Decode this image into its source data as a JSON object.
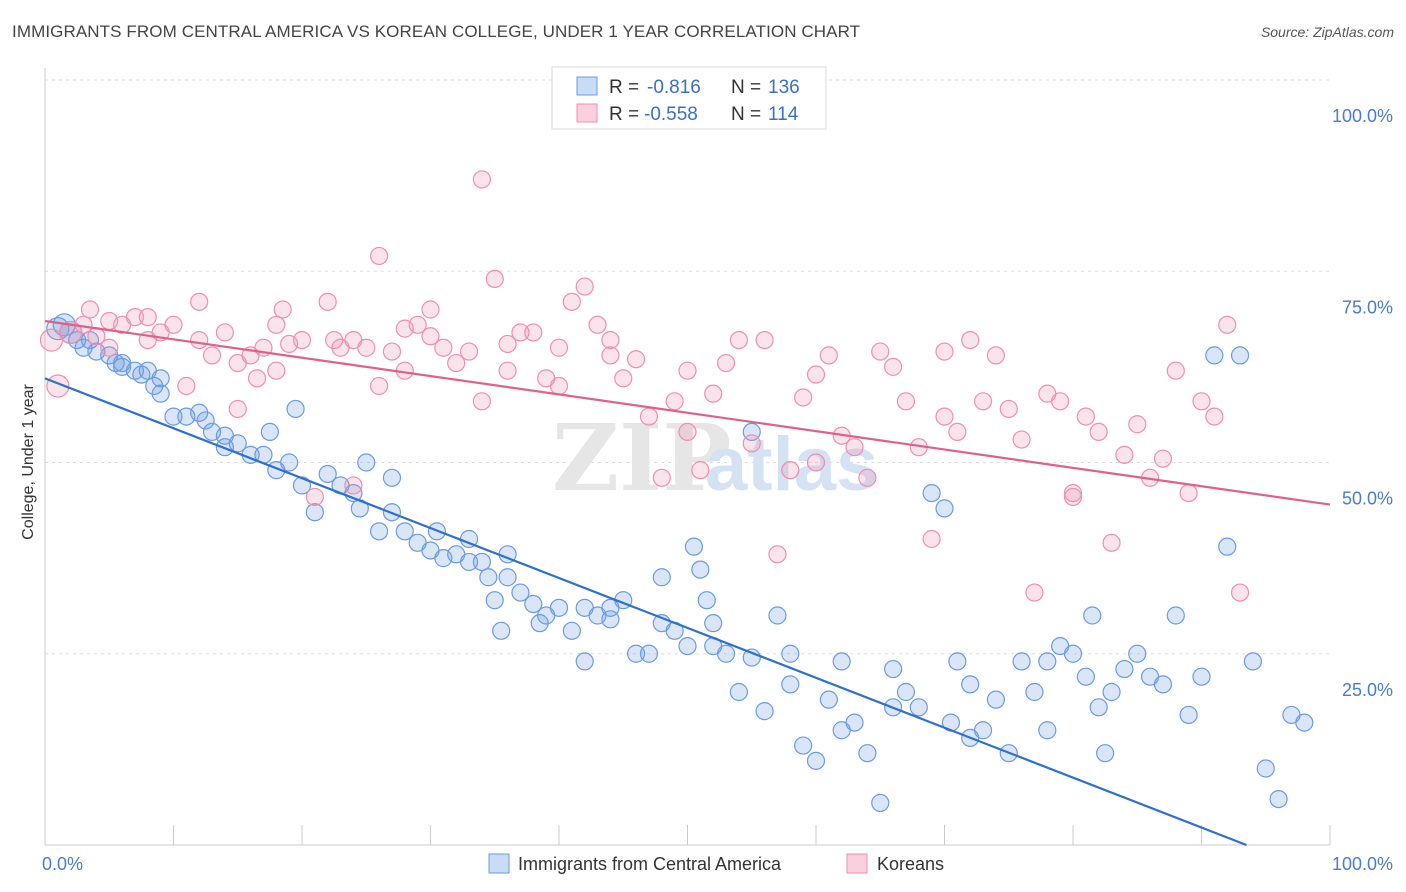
{
  "title": "IMMIGRANTS FROM CENTRAL AMERICA VS KOREAN COLLEGE, UNDER 1 YEAR CORRELATION CHART",
  "source": "Source: ZipAtlas.com",
  "watermark": {
    "zip": "ZIP",
    "atlas": "atlas"
  },
  "colors": {
    "blue": "#6b9be0",
    "blue_line": "#2f6fd0",
    "pink": "#ee8fb0",
    "pink_line": "#e0608c"
  },
  "legend": {
    "r_label": "R =",
    "n_label": "N =",
    "entries": [
      {
        "r": "-0.816",
        "n": "136"
      },
      {
        "r": "-0.558",
        "n": "114"
      }
    ]
  },
  "bottom_legend": [
    "Immigrants from Central America",
    "Koreans"
  ],
  "chart_data": {
    "type": "scatter",
    "xlabel": "",
    "ylabel": "College, Under 1 year",
    "xlim": [
      0,
      100
    ],
    "ylim": [
      0,
      100
    ],
    "x_ticks": [
      "0.0%",
      "100.0%"
    ],
    "y_ticks": [
      "25.0%",
      "50.0%",
      "75.0%",
      "100.0%"
    ],
    "grid": "horizontal dashed",
    "legend_position": "top-center",
    "series": [
      {
        "name": "Immigrants from Central America",
        "r": -0.816,
        "n": 136,
        "trend": {
          "x": [
            0,
            93.5
          ],
          "y": [
            61,
            0
          ]
        },
        "points": [
          [
            1,
            67.5
          ],
          [
            1.5,
            68
          ],
          [
            2,
            67
          ],
          [
            2.5,
            66
          ],
          [
            3,
            65
          ],
          [
            3.5,
            66
          ],
          [
            4,
            64.5
          ],
          [
            5,
            64
          ],
          [
            5.5,
            63
          ],
          [
            6,
            63
          ],
          [
            7,
            62
          ],
          [
            7.5,
            61.5
          ],
          [
            8,
            62
          ],
          [
            8.5,
            60
          ],
          [
            9,
            59
          ],
          [
            10,
            56
          ],
          [
            11,
            56
          ],
          [
            12,
            56.5
          ],
          [
            12.5,
            55.5
          ],
          [
            13,
            54
          ],
          [
            14,
            53.5
          ],
          [
            15,
            52.5
          ],
          [
            16,
            51
          ],
          [
            17,
            51
          ],
          [
            17.5,
            54
          ],
          [
            18,
            49
          ],
          [
            19,
            50
          ],
          [
            20,
            47
          ],
          [
            21,
            43.5
          ],
          [
            19.5,
            57
          ],
          [
            22,
            48.5
          ],
          [
            23,
            47
          ],
          [
            24,
            46
          ],
          [
            24.5,
            44
          ],
          [
            25,
            50
          ],
          [
            26,
            41
          ],
          [
            27,
            43.5
          ],
          [
            28,
            41
          ],
          [
            29,
            39.5
          ],
          [
            30,
            38.5
          ],
          [
            30.5,
            41
          ],
          [
            31,
            37.5
          ],
          [
            32,
            38
          ],
          [
            33,
            40
          ],
          [
            34,
            37
          ],
          [
            34.5,
            35
          ],
          [
            35,
            32
          ],
          [
            35.5,
            28
          ],
          [
            36,
            35
          ],
          [
            37,
            33
          ],
          [
            38,
            31.5
          ],
          [
            38.5,
            29
          ],
          [
            39,
            30
          ],
          [
            40,
            31
          ],
          [
            41,
            28
          ],
          [
            42,
            31
          ],
          [
            43,
            30
          ],
          [
            44,
            29.5
          ],
          [
            45,
            32
          ],
          [
            46,
            25
          ],
          [
            47,
            25
          ],
          [
            48,
            29
          ],
          [
            49,
            28
          ],
          [
            50,
            26
          ],
          [
            50.5,
            39
          ],
          [
            51,
            36
          ],
          [
            51.5,
            32
          ],
          [
            52,
            26
          ],
          [
            53,
            25
          ],
          [
            54,
            20
          ],
          [
            55,
            24.5
          ],
          [
            56,
            17.5
          ],
          [
            57,
            30
          ],
          [
            58,
            21
          ],
          [
            59,
            13
          ],
          [
            60,
            11
          ],
          [
            61,
            19
          ],
          [
            62,
            24
          ],
          [
            63,
            16
          ],
          [
            64,
            12
          ],
          [
            65,
            5.5
          ],
          [
            66,
            23
          ],
          [
            67,
            20
          ],
          [
            68,
            18
          ],
          [
            69,
            46
          ],
          [
            70,
            44
          ],
          [
            70.5,
            16
          ],
          [
            71,
            24
          ],
          [
            72,
            14
          ],
          [
            73,
            15
          ],
          [
            74,
            19
          ],
          [
            75,
            12
          ],
          [
            76,
            24
          ],
          [
            77,
            20
          ],
          [
            78,
            15
          ],
          [
            79,
            26
          ],
          [
            80,
            25
          ],
          [
            81,
            22
          ],
          [
            81.5,
            30
          ],
          [
            82,
            18
          ],
          [
            82.5,
            12
          ],
          [
            83,
            20
          ],
          [
            84,
            23
          ],
          [
            85,
            25
          ],
          [
            86,
            22
          ],
          [
            87,
            21
          ],
          [
            88,
            30
          ],
          [
            89,
            17
          ],
          [
            90,
            22
          ],
          [
            91,
            64
          ],
          [
            92,
            39
          ],
          [
            93,
            64
          ],
          [
            94,
            24
          ],
          [
            95,
            10
          ],
          [
            96,
            6
          ],
          [
            97,
            17
          ],
          [
            98,
            16
          ],
          [
            55,
            54
          ],
          [
            48,
            35
          ],
          [
            42,
            24
          ],
          [
            36,
            38
          ],
          [
            44,
            31
          ],
          [
            52,
            29
          ],
          [
            58,
            25
          ],
          [
            62,
            15
          ],
          [
            66,
            18
          ],
          [
            72,
            21
          ],
          [
            78,
            24
          ],
          [
            6,
            62.5
          ],
          [
            9,
            61
          ],
          [
            14,
            52
          ],
          [
            27,
            48
          ],
          [
            33,
            37
          ]
        ]
      },
      {
        "name": "Koreans",
        "r": -0.558,
        "n": 114,
        "trend": {
          "x": [
            0,
            100
          ],
          "y": [
            68.5,
            44.5
          ]
        },
        "points": [
          [
            0.5,
            66
          ],
          [
            1,
            60
          ],
          [
            2,
            67
          ],
          [
            3,
            68
          ],
          [
            3.5,
            70
          ],
          [
            4,
            66.5
          ],
          [
            5,
            65
          ],
          [
            6,
            68
          ],
          [
            7,
            69
          ],
          [
            8,
            66
          ],
          [
            9,
            67
          ],
          [
            10,
            68
          ],
          [
            11,
            60
          ],
          [
            12,
            71
          ],
          [
            13,
            64
          ],
          [
            14,
            67
          ],
          [
            15,
            57
          ],
          [
            16,
            64
          ],
          [
            16.5,
            61
          ],
          [
            17,
            65
          ],
          [
            18,
            68
          ],
          [
            18.5,
            70
          ],
          [
            19,
            65.5
          ],
          [
            20,
            66
          ],
          [
            21,
            45.5
          ],
          [
            22,
            71
          ],
          [
            22.5,
            66
          ],
          [
            23,
            65
          ],
          [
            24,
            47
          ],
          [
            25,
            65
          ],
          [
            26,
            77
          ],
          [
            27,
            64.5
          ],
          [
            28,
            67.5
          ],
          [
            29,
            68
          ],
          [
            30,
            66.5
          ],
          [
            31,
            65
          ],
          [
            32,
            63
          ],
          [
            33,
            64.5
          ],
          [
            34,
            58
          ],
          [
            35,
            74
          ],
          [
            36,
            65.5
          ],
          [
            37,
            67
          ],
          [
            38,
            67
          ],
          [
            39,
            61
          ],
          [
            40,
            65
          ],
          [
            41,
            71
          ],
          [
            42,
            73
          ],
          [
            43,
            68
          ],
          [
            44,
            66
          ],
          [
            45,
            61
          ],
          [
            46,
            63.5
          ],
          [
            47,
            56
          ],
          [
            48,
            48
          ],
          [
            49,
            58
          ],
          [
            50,
            62
          ],
          [
            51,
            49
          ],
          [
            52,
            59
          ],
          [
            53,
            63
          ],
          [
            54,
            66
          ],
          [
            55,
            52.5
          ],
          [
            56,
            66
          ],
          [
            57,
            38
          ],
          [
            58,
            49
          ],
          [
            59,
            58.5
          ],
          [
            60,
            61.5
          ],
          [
            61,
            64
          ],
          [
            62,
            53.5
          ],
          [
            63,
            52
          ],
          [
            64,
            48
          ],
          [
            65,
            64.5
          ],
          [
            66,
            62.5
          ],
          [
            67,
            58
          ],
          [
            68,
            52
          ],
          [
            69,
            40
          ],
          [
            70,
            64.5
          ],
          [
            71,
            54
          ],
          [
            72,
            66
          ],
          [
            73,
            58
          ],
          [
            74,
            64
          ],
          [
            75,
            57
          ],
          [
            76,
            53
          ],
          [
            77,
            33
          ],
          [
            78,
            59
          ],
          [
            79,
            58
          ],
          [
            80,
            45.5
          ],
          [
            81,
            56
          ],
          [
            82,
            54
          ],
          [
            83,
            39.5
          ],
          [
            84,
            51
          ],
          [
            85,
            55
          ],
          [
            86,
            48
          ],
          [
            87,
            50.5
          ],
          [
            88,
            62
          ],
          [
            89,
            46
          ],
          [
            90,
            58
          ],
          [
            91,
            56
          ],
          [
            92,
            68
          ],
          [
            93,
            33
          ],
          [
            34,
            87
          ],
          [
            26,
            60
          ],
          [
            30,
            70
          ],
          [
            40,
            60
          ],
          [
            50,
            54
          ],
          [
            60,
            50
          ],
          [
            70,
            56
          ],
          [
            80,
            46
          ],
          [
            5,
            68.5
          ],
          [
            8,
            69
          ],
          [
            12,
            66
          ],
          [
            15,
            63
          ],
          [
            18,
            62
          ],
          [
            24,
            66
          ],
          [
            28,
            62
          ],
          [
            36,
            62
          ],
          [
            44,
            64
          ]
        ]
      }
    ]
  }
}
